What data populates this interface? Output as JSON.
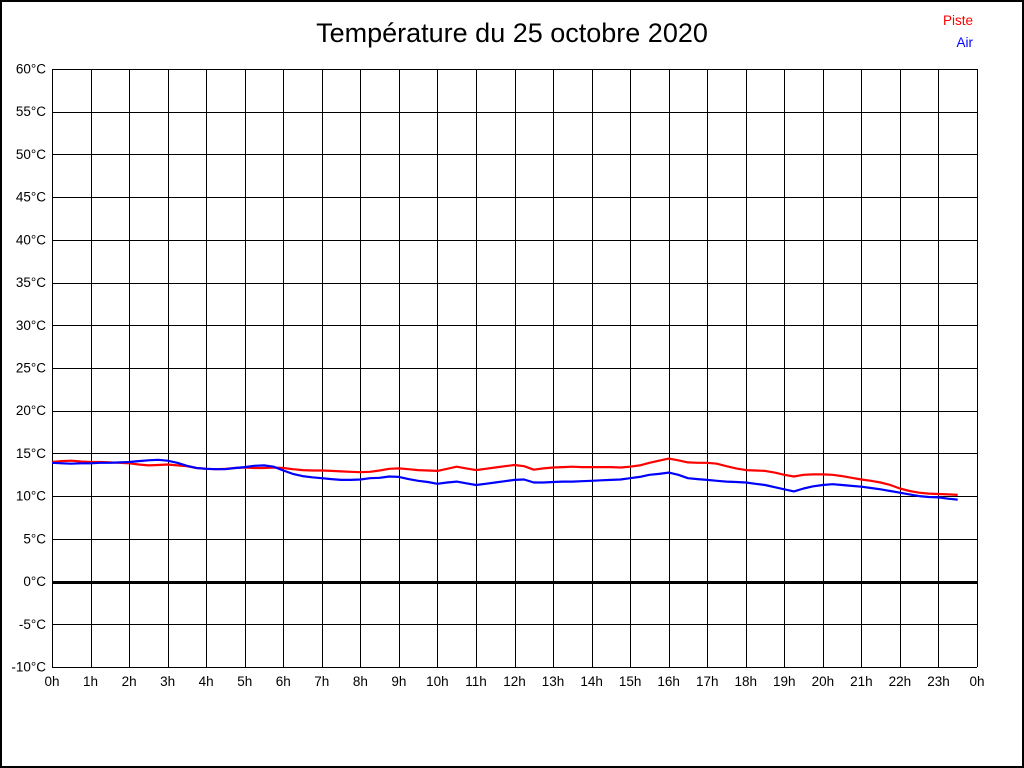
{
  "page": {
    "title": "Température du 25 octobre 2020"
  },
  "legend": {
    "items": [
      {
        "label": "Piste",
        "color": "#ff0000"
      },
      {
        "label": "Air",
        "color": "#0000ff"
      }
    ]
  },
  "chart_data": {
    "type": "line",
    "title": "Température du 25 octobre 2020",
    "xlabel": "",
    "ylabel": "",
    "unit": "°C",
    "xlim": [
      0,
      24
    ],
    "ylim": [
      -10,
      60
    ],
    "x_grid_step": 1,
    "y_grid_step": 5,
    "grid": true,
    "grid_color": "#000000",
    "zero_line": {
      "value": 0,
      "color": "#000000",
      "width": 3
    },
    "legend_position": "top-right",
    "x_tick_labels": [
      "0h",
      "1h",
      "2h",
      "3h",
      "4h",
      "5h",
      "6h",
      "7h",
      "8h",
      "9h",
      "10h",
      "11h",
      "12h",
      "13h",
      "14h",
      "15h",
      "16h",
      "17h",
      "18h",
      "19h",
      "20h",
      "21h",
      "22h",
      "23h",
      "0h"
    ],
    "y_tick_labels": [
      "60°C",
      "55°C",
      "50°C",
      "45°C",
      "40°C",
      "35°C",
      "30°C",
      "25°C",
      "20°C",
      "15°C",
      "10°C",
      "5°C",
      "0°C",
      "-5°C",
      "-10°C"
    ],
    "series": [
      {
        "name": "Piste",
        "color": "#ff0000",
        "x_start": 0,
        "x_step": 0.25,
        "values": [
          14,
          14.1,
          14.15,
          14.05,
          14,
          14,
          13.95,
          13.9,
          13.85,
          13.7,
          13.6,
          13.65,
          13.7,
          13.6,
          13.5,
          13.3,
          13.2,
          13.15,
          13.2,
          13.3,
          13.35,
          13.3,
          13.3,
          13.35,
          13.3,
          13.15,
          13.05,
          13,
          13,
          12.95,
          12.9,
          12.85,
          12.8,
          12.85,
          13,
          13.2,
          13.25,
          13.15,
          13.05,
          13,
          12.95,
          13.2,
          13.45,
          13.25,
          13.05,
          13.2,
          13.35,
          13.5,
          13.65,
          13.5,
          13.1,
          13.25,
          13.35,
          13.4,
          13.45,
          13.4,
          13.4,
          13.4,
          13.4,
          13.35,
          13.45,
          13.6,
          13.9,
          14.15,
          14.4,
          14.2,
          13.95,
          13.9,
          13.9,
          13.8,
          13.5,
          13.25,
          13.05,
          13,
          12.95,
          12.75,
          12.5,
          12.3,
          12.5,
          12.55,
          12.55,
          12.5,
          12.35,
          12.15,
          11.95,
          11.8,
          11.6,
          11.3,
          10.9,
          10.6,
          10.4,
          10.3,
          10.25,
          10.2,
          10.15
        ]
      },
      {
        "name": "Air",
        "color": "#0000ff",
        "x_start": 0,
        "x_step": 0.25,
        "values": [
          13.9,
          13.85,
          13.8,
          13.85,
          13.85,
          13.9,
          13.9,
          13.95,
          14,
          14.1,
          14.2,
          14.25,
          14.15,
          13.9,
          13.55,
          13.3,
          13.2,
          13.15,
          13.15,
          13.3,
          13.4,
          13.55,
          13.6,
          13.45,
          13,
          12.6,
          12.35,
          12.2,
          12.1,
          12,
          11.9,
          11.9,
          11.95,
          12.1,
          12.15,
          12.3,
          12.25,
          12,
          11.8,
          11.65,
          11.45,
          11.6,
          11.7,
          11.5,
          11.3,
          11.45,
          11.6,
          11.75,
          11.9,
          11.95,
          11.6,
          11.6,
          11.65,
          11.7,
          11.7,
          11.75,
          11.8,
          11.85,
          11.9,
          11.95,
          12.1,
          12.25,
          12.5,
          12.6,
          12.75,
          12.5,
          12.1,
          12,
          11.9,
          11.8,
          11.7,
          11.65,
          11.6,
          11.45,
          11.3,
          11.05,
          10.8,
          10.55,
          10.9,
          11.15,
          11.3,
          11.4,
          11.3,
          11.2,
          11.1,
          10.95,
          10.8,
          10.6,
          10.4,
          10.2,
          10,
          9.9,
          9.85,
          9.7,
          9.6
        ]
      }
    ]
  }
}
